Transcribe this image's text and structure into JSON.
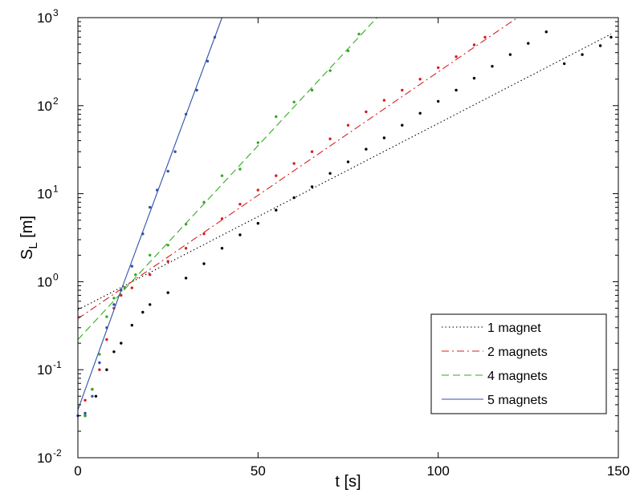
{
  "chart_data": {
    "type": "line",
    "xlabel": "t   [s]",
    "ylabel": {
      "main": "S",
      "sub": "L",
      "unit": "  [m]"
    },
    "xlim": [
      0,
      150
    ],
    "ylim": [
      0.01,
      1000
    ],
    "yscale": "log",
    "grid": false,
    "legend_position": "lower-right",
    "x_ticks": [
      "0",
      "50",
      "100",
      "150"
    ],
    "y_ticks": [
      {
        "base": "10",
        "exp": "-2",
        "value": 0.01
      },
      {
        "base": "10",
        "exp": "-1",
        "value": 0.1
      },
      {
        "base": "10",
        "exp": "0",
        "value": 1
      },
      {
        "base": "10",
        "exp": "1",
        "value": 10
      },
      {
        "base": "10",
        "exp": "2",
        "value": 100
      },
      {
        "base": "10",
        "exp": "3",
        "value": 1000
      }
    ],
    "series": [
      {
        "name": "1 magnet",
        "color": "#000000",
        "line_style": "dotted",
        "fit": [
          [
            0,
            0.48
          ],
          [
            148,
            650
          ]
        ],
        "points": [
          [
            2,
            0.03
          ],
          [
            5,
            0.05
          ],
          [
            8,
            0.1
          ],
          [
            10,
            0.16
          ],
          [
            12,
            0.2
          ],
          [
            15,
            0.32
          ],
          [
            18,
            0.45
          ],
          [
            20,
            0.55
          ],
          [
            25,
            0.75
          ],
          [
            30,
            1.1
          ],
          [
            35,
            1.6
          ],
          [
            40,
            2.4
          ],
          [
            45,
            3.4
          ],
          [
            50,
            4.6
          ],
          [
            55,
            6.5
          ],
          [
            60,
            9
          ],
          [
            65,
            12
          ],
          [
            70,
            17
          ],
          [
            75,
            23
          ],
          [
            80,
            32
          ],
          [
            85,
            43
          ],
          [
            90,
            60
          ],
          [
            95,
            82
          ],
          [
            100,
            112
          ],
          [
            105,
            150
          ],
          [
            110,
            205
          ],
          [
            115,
            280
          ],
          [
            120,
            380
          ],
          [
            125,
            510
          ],
          [
            130,
            690
          ],
          [
            135,
            300
          ],
          [
            140,
            380
          ],
          [
            145,
            480
          ],
          [
            148,
            600
          ]
        ]
      },
      {
        "name": "2 magnets",
        "color": "#d42020",
        "line_style": "dashdot",
        "fit": [
          [
            0,
            0.38
          ],
          [
            122,
            1000
          ]
        ],
        "points": [
          [
            2,
            0.045
          ],
          [
            4,
            0.06
          ],
          [
            6,
            0.1
          ],
          [
            8,
            0.22
          ],
          [
            10,
            0.5
          ],
          [
            12,
            0.7
          ],
          [
            15,
            0.85
          ],
          [
            20,
            1.2
          ],
          [
            25,
            1.7
          ],
          [
            30,
            2.4
          ],
          [
            35,
            3.5
          ],
          [
            40,
            5.2
          ],
          [
            45,
            7.6
          ],
          [
            50,
            11
          ],
          [
            55,
            16
          ],
          [
            60,
            22
          ],
          [
            65,
            30
          ],
          [
            70,
            42
          ],
          [
            75,
            60
          ],
          [
            80,
            85
          ],
          [
            85,
            115
          ],
          [
            90,
            150
          ],
          [
            95,
            200
          ],
          [
            100,
            270
          ],
          [
            105,
            360
          ],
          [
            110,
            490
          ],
          [
            113,
            600
          ]
        ]
      },
      {
        "name": "4 magnets",
        "color": "#33aa22",
        "line_style": "dashed",
        "fit": [
          [
            0,
            0.22
          ],
          [
            83,
            1000
          ]
        ],
        "points": [
          [
            2,
            0.03
          ],
          [
            4,
            0.06
          ],
          [
            6,
            0.15
          ],
          [
            8,
            0.4
          ],
          [
            10,
            0.65
          ],
          [
            13,
            0.85
          ],
          [
            16,
            1.2
          ],
          [
            20,
            2
          ],
          [
            25,
            2.6
          ],
          [
            30,
            4.5
          ],
          [
            35,
            8
          ],
          [
            40,
            16
          ],
          [
            45,
            19
          ],
          [
            50,
            38
          ],
          [
            55,
            75
          ],
          [
            60,
            110
          ],
          [
            65,
            150
          ],
          [
            70,
            250
          ],
          [
            75,
            420
          ],
          [
            78,
            650
          ]
        ]
      },
      {
        "name": "5 magnets",
        "color": "#3050a8",
        "line_style": "solid",
        "fit": [
          [
            0,
            0.035
          ],
          [
            12,
            0.8
          ],
          [
            40,
            1000
          ]
        ],
        "points": [
          [
            0,
            0.03
          ],
          [
            2,
            0.032
          ],
          [
            4,
            0.05
          ],
          [
            6,
            0.12
          ],
          [
            8,
            0.3
          ],
          [
            10,
            0.55
          ],
          [
            12,
            0.8
          ],
          [
            15,
            1.5
          ],
          [
            18,
            3.5
          ],
          [
            20,
            7
          ],
          [
            22,
            11
          ],
          [
            25,
            18
          ],
          [
            27,
            30
          ],
          [
            30,
            80
          ],
          [
            33,
            150
          ],
          [
            36,
            320
          ],
          [
            38,
            600
          ]
        ]
      }
    ]
  }
}
